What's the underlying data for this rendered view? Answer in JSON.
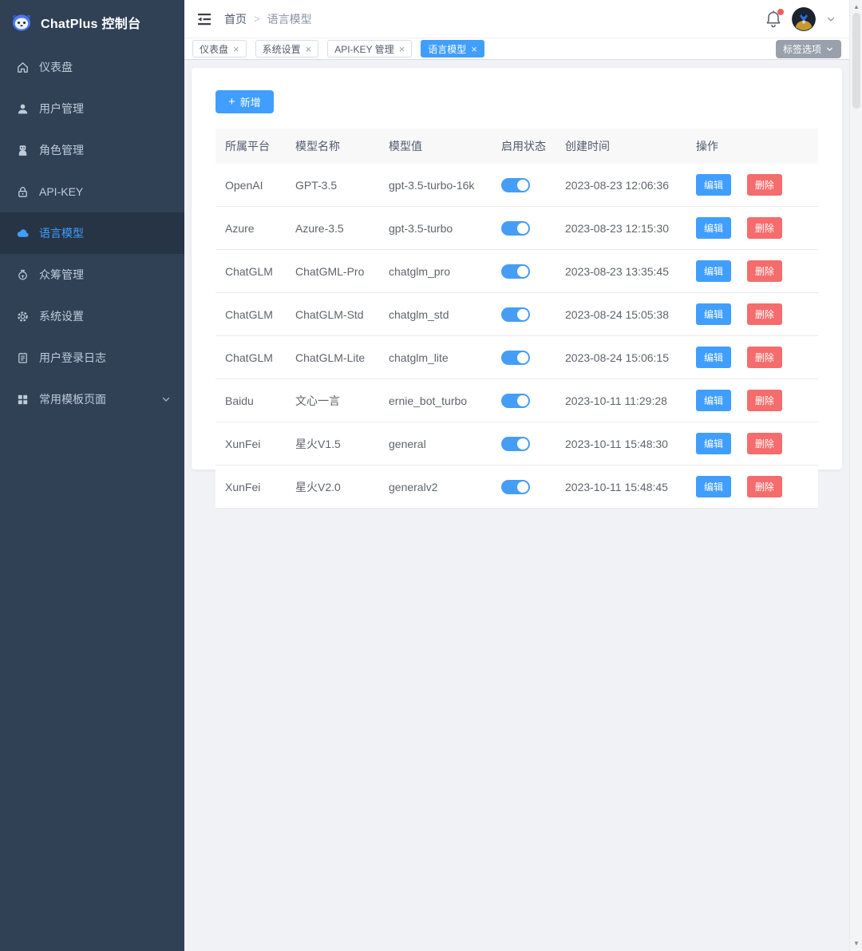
{
  "colors": {
    "accent": "#409eff",
    "danger": "#f56c6c",
    "sidebar_bg": "#304156",
    "sidebar_active_bg": "#263445",
    "sidebar_text": "#bfcbd9",
    "tag_button_bg": "#98a0ab",
    "content_bg": "#f0f2f5",
    "toggle_on": "#459df5",
    "notification_dot": "#f25b5b"
  },
  "sidebar": {
    "title": "ChatPlus 控制台",
    "logo_icon": "robot-logo-icon",
    "items": [
      {
        "label": "仪表盘",
        "icon": "home-icon",
        "active": false,
        "expandable": false
      },
      {
        "label": "用户管理",
        "icon": "user-icon",
        "active": false,
        "expandable": false
      },
      {
        "label": "角色管理",
        "icon": "robot-icon",
        "active": false,
        "expandable": false
      },
      {
        "label": "API-KEY",
        "icon": "lock-icon",
        "active": false,
        "expandable": false
      },
      {
        "label": "语言模型",
        "icon": "cloud-icon",
        "active": true,
        "expandable": false
      },
      {
        "label": "众筹管理",
        "icon": "moneybag-icon",
        "active": false,
        "expandable": false
      },
      {
        "label": "系统设置",
        "icon": "gear-icon",
        "active": false,
        "expandable": false
      },
      {
        "label": "用户登录日志",
        "icon": "log-icon",
        "active": false,
        "expandable": false
      },
      {
        "label": "常用模板页面",
        "icon": "grid-icon",
        "active": false,
        "expandable": true
      }
    ]
  },
  "topbar": {
    "breadcrumb": [
      "首页",
      "语言模型"
    ],
    "separator": ">",
    "has_notification_dot": true
  },
  "tabsbar": {
    "tabs": [
      {
        "label": "仪表盘",
        "active": false
      },
      {
        "label": "系统设置",
        "active": false
      },
      {
        "label": "API-KEY 管理",
        "active": false
      },
      {
        "label": "语言模型",
        "active": true
      }
    ],
    "close_glyph": "×",
    "options_button": "标签选项"
  },
  "content": {
    "add_button": "新增",
    "table": {
      "columns": [
        "所属平台",
        "模型名称",
        "模型值",
        "启用状态",
        "创建时间",
        "操作"
      ],
      "edit_label": "编辑",
      "delete_label": "删除",
      "rows": [
        {
          "platform": "OpenAI",
          "name": "GPT-3.5",
          "value": "gpt-3.5-turbo-16k",
          "enabled": true,
          "created": "2023-08-23 12:06:36"
        },
        {
          "platform": "Azure",
          "name": "Azure-3.5",
          "value": "gpt-3.5-turbo",
          "enabled": true,
          "created": "2023-08-23 12:15:30"
        },
        {
          "platform": "ChatGLM",
          "name": "ChatGML-Pro",
          "value": "chatglm_pro",
          "enabled": true,
          "created": "2023-08-23 13:35:45"
        },
        {
          "platform": "ChatGLM",
          "name": "ChatGLM-Std",
          "value": "chatglm_std",
          "enabled": true,
          "created": "2023-08-24 15:05:38"
        },
        {
          "platform": "ChatGLM",
          "name": "ChatGLM-Lite",
          "value": "chatglm_lite",
          "enabled": true,
          "created": "2023-08-24 15:06:15"
        },
        {
          "platform": "Baidu",
          "name": "文心一言",
          "value": "ernie_bot_turbo",
          "enabled": true,
          "created": "2023-10-11 11:29:28"
        },
        {
          "platform": "XunFei",
          "name": "星火V1.5",
          "value": "general",
          "enabled": true,
          "created": "2023-10-11 15:48:30"
        },
        {
          "platform": "XunFei",
          "name": "星火V2.0",
          "value": "generalv2",
          "enabled": true,
          "created": "2023-10-11 15:48:45"
        }
      ]
    }
  }
}
